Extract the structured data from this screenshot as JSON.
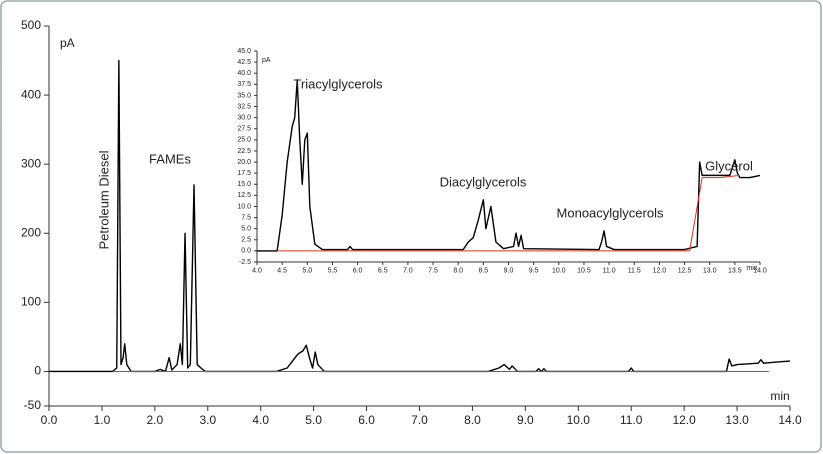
{
  "chart_data": [
    {
      "type": "line",
      "x_label": "min",
      "y_label": "pA",
      "xlim": [
        0,
        14
      ],
      "ylim": [
        -50,
        500
      ],
      "xticks": [
        {
          "value": 0,
          "label": "0.0"
        },
        {
          "value": 1,
          "label": "1.0"
        },
        {
          "value": 2,
          "label": "2.0"
        },
        {
          "value": 3,
          "label": "3.0"
        },
        {
          "value": 4,
          "label": "4.0"
        },
        {
          "value": 5,
          "label": "5.0"
        },
        {
          "value": 6,
          "label": "6.0"
        },
        {
          "value": 7,
          "label": "7.0"
        },
        {
          "value": 8,
          "label": "8.0"
        },
        {
          "value": 9,
          "label": "9.0"
        },
        {
          "value": 10,
          "label": "10.0"
        },
        {
          "value": 11,
          "label": "11.0"
        },
        {
          "value": 12,
          "label": "12.0"
        },
        {
          "value": 13,
          "label": "13.0"
        },
        {
          "value": 14,
          "label": "14.0"
        }
      ],
      "yticks": [
        -50,
        0,
        100,
        200,
        300,
        400,
        500
      ],
      "annotations": [
        "Petroleum Diesel",
        "FAMEs"
      ],
      "series": [
        {
          "color": "#000000",
          "x": [
            0,
            1.2,
            1.28,
            1.32,
            1.36,
            1.4,
            1.43,
            1.47,
            1.55,
            2.0,
            2.1,
            2.2,
            2.27,
            2.32,
            2.42,
            2.48,
            2.52,
            2.57,
            2.62,
            2.67,
            2.74,
            2.8,
            2.87,
            2.95,
            4.3,
            4.5,
            4.6,
            4.7,
            4.8,
            4.86,
            4.92,
            4.98,
            5.03,
            5.08,
            5.2,
            8.3,
            8.5,
            8.6,
            8.7,
            8.75,
            8.85,
            9.2,
            9.25,
            9.3,
            9.35,
            9.4,
            10.95,
            11.0,
            11.05,
            12.8,
            12.85,
            12.9,
            13.0,
            13.4,
            13.45,
            13.5,
            13.8,
            14.0
          ],
          "values": [
            0,
            0,
            5,
            450,
            10,
            20,
            40,
            10,
            0,
            0,
            3,
            0,
            20,
            2,
            10,
            40,
            10,
            200,
            5,
            10,
            270,
            10,
            5,
            0,
            0,
            5,
            15,
            25,
            30,
            38,
            20,
            5,
            28,
            10,
            0,
            0,
            5,
            10,
            3,
            8,
            0,
            0,
            4,
            0,
            4,
            0,
            0,
            5,
            0,
            0,
            18,
            8,
            10,
            12,
            17,
            12,
            14,
            15
          ]
        },
        {
          "color": "#e0301e",
          "x": [
            1.2,
            13.6
          ],
          "values": [
            0,
            0
          ]
        }
      ]
    },
    {
      "type": "line",
      "x_label": "min",
      "y_label": "pA",
      "xlim": [
        4,
        14
      ],
      "ylim": [
        -2.5,
        45
      ],
      "xticks": [
        {
          "value": 4,
          "label": "4.0"
        },
        {
          "value": 4.5,
          "label": "4.5"
        },
        {
          "value": 5,
          "label": "5.0"
        },
        {
          "value": 5.5,
          "label": "5.5"
        },
        {
          "value": 6,
          "label": "6.0"
        },
        {
          "value": 6.5,
          "label": "6.5"
        },
        {
          "value": 7,
          "label": "7.0"
        },
        {
          "value": 7.5,
          "label": "7.5"
        },
        {
          "value": 8,
          "label": "8.0"
        },
        {
          "value": 8.5,
          "label": "8.5"
        },
        {
          "value": 9,
          "label": "9.0"
        },
        {
          "value": 9.5,
          "label": "9.5"
        },
        {
          "value": 10,
          "label": "10.0"
        },
        {
          "value": 10.5,
          "label": "10.5"
        },
        {
          "value": 11,
          "label": "11.0"
        },
        {
          "value": 11.5,
          "label": "11.5"
        },
        {
          "value": 12,
          "label": "12.0"
        },
        {
          "value": 12.5,
          "label": "12.5"
        },
        {
          "value": 13,
          "label": "13.0"
        },
        {
          "value": 13.5,
          "label": "13.5"
        },
        {
          "value": 14,
          "label": "14.0"
        }
      ],
      "yticks": [
        {
          "value": -2.5,
          "label": "-2.5"
        },
        {
          "value": 0,
          "label": "0.0"
        },
        {
          "value": 2.5,
          "label": "2.5"
        },
        {
          "value": 5,
          "label": "5.0"
        },
        {
          "value": 7.5,
          "label": "7.5"
        },
        {
          "value": 10,
          "label": "10.0"
        },
        {
          "value": 12.5,
          "label": "12.5"
        },
        {
          "value": 15,
          "label": "15.0"
        },
        {
          "value": 17.5,
          "label": "17.5"
        },
        {
          "value": 20,
          "label": "20.0"
        },
        {
          "value": 22.5,
          "label": "22.5"
        },
        {
          "value": 25,
          "label": "25.0"
        },
        {
          "value": 27.5,
          "label": "27.5"
        },
        {
          "value": 30,
          "label": "30.0"
        },
        {
          "value": 32.5,
          "label": "32.5"
        },
        {
          "value": 35,
          "label": "35.0"
        },
        {
          "value": 37.5,
          "label": "37.5"
        },
        {
          "value": 40,
          "label": "40.0"
        },
        {
          "value": 42.5,
          "label": "42.5"
        },
        {
          "value": 45,
          "label": "45.0"
        }
      ],
      "annotations": [
        "Triacylglycerols",
        "Diacylglycerols",
        "Monoacylglycerols",
        "Glycerol"
      ],
      "series": [
        {
          "color": "#000000",
          "x": [
            4.0,
            4.4,
            4.5,
            4.6,
            4.7,
            4.75,
            4.8,
            4.85,
            4.9,
            4.95,
            5.0,
            5.05,
            5.15,
            5.3,
            5.8,
            5.85,
            5.9,
            8.1,
            8.2,
            8.3,
            8.4,
            8.5,
            8.55,
            8.65,
            8.75,
            8.9,
            9.1,
            9.15,
            9.2,
            9.25,
            9.3,
            10.8,
            10.85,
            10.9,
            10.95,
            11.1,
            12.5,
            12.75,
            12.8,
            12.85,
            13.0,
            13.2,
            13.4,
            13.5,
            13.55,
            13.6,
            13.8,
            14.0
          ],
          "values": [
            0,
            0,
            8,
            20,
            28,
            30,
            38.5,
            25,
            15,
            25,
            26.5,
            10,
            1.5,
            0.3,
            0.3,
            1,
            0.3,
            0.3,
            2,
            3,
            7,
            11.5,
            5,
            10,
            2,
            0.5,
            1,
            4,
            1,
            3.5,
            0.5,
            0.3,
            2,
            4.5,
            1,
            0.3,
            0.3,
            1,
            20,
            17,
            17,
            17,
            17,
            20.5,
            17.5,
            16.5,
            16.5,
            17
          ]
        },
        {
          "color": "#e0301e",
          "x": [
            4.4,
            12.6,
            12.85,
            13.2,
            13.6
          ],
          "values": [
            0,
            0,
            16.5,
            16.5,
            17
          ]
        }
      ]
    }
  ]
}
